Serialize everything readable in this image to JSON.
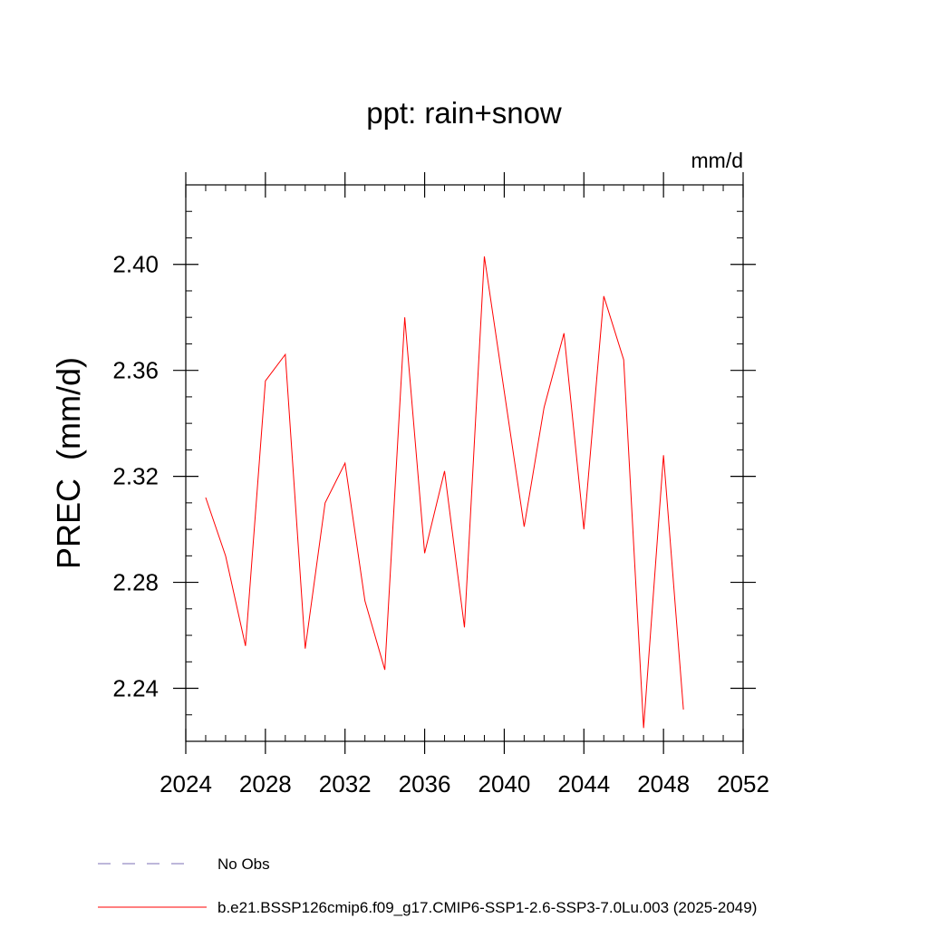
{
  "chart_data": {
    "type": "line",
    "title": "ppt: rain+snow",
    "units_label": "mm/d",
    "xlabel": "",
    "ylabel": "PREC  (mm/d)",
    "xlim": [
      2024,
      2052
    ],
    "ylim": [
      2.22,
      2.43
    ],
    "x_ticks": [
      2024,
      2028,
      2032,
      2036,
      2040,
      2044,
      2048,
      2052
    ],
    "y_ticks": [
      2.24,
      2.28,
      2.32,
      2.36,
      2.4
    ],
    "y_tick_labels": [
      "2.24",
      "2.28",
      "2.32",
      "2.36",
      "2.40"
    ],
    "x_minor_step": 1,
    "y_minor_step": 0.01,
    "grid": false,
    "series": [
      {
        "name": "b.e21.BSSP126cmip6.f09_g17.CMIP6-SSP1-2.6-SSP3-7.0Lu.003 (2025-2049)",
        "color": "#ff0000",
        "x": [
          2025,
          2026,
          2027,
          2028,
          2029,
          2030,
          2031,
          2032,
          2033,
          2034,
          2035,
          2036,
          2037,
          2038,
          2039,
          2040,
          2041,
          2042,
          2043,
          2044,
          2045,
          2046,
          2047,
          2048,
          2049
        ],
        "values": [
          2.312,
          2.29,
          2.256,
          2.356,
          2.366,
          2.255,
          2.31,
          2.325,
          2.273,
          2.247,
          2.38,
          2.291,
          2.322,
          2.263,
          2.403,
          2.352,
          2.301,
          2.346,
          2.374,
          2.3,
          2.388,
          2.364,
          2.225,
          2.328,
          2.232
        ]
      }
    ],
    "legend": {
      "placement": "bottom-left",
      "entries": [
        {
          "label": "No Obs",
          "style": "dashed",
          "color": "#7b6fb5"
        },
        {
          "label": "b.e21.BSSP126cmip6.f09_g17.CMIP6-SSP1-2.6-SSP3-7.0Lu.003 (2025-2049)",
          "style": "solid",
          "color": "#ff0000"
        }
      ]
    }
  }
}
